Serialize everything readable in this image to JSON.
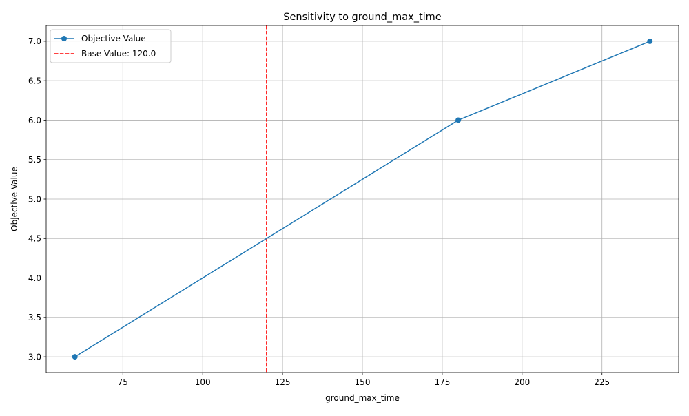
{
  "chart_data": {
    "type": "line",
    "title": "Sensitivity to ground_max_time",
    "xlabel": "ground_max_time",
    "ylabel": "Objective Value",
    "xlim": [
      51.0,
      249.0
    ],
    "ylim": [
      2.8,
      7.2
    ],
    "xticks": [
      75,
      100,
      125,
      150,
      175,
      200,
      225
    ],
    "yticks": [
      3.0,
      3.5,
      4.0,
      4.5,
      5.0,
      5.5,
      6.0,
      6.5,
      7.0
    ],
    "xtick_labels": [
      "75",
      "100",
      "125",
      "150",
      "175",
      "200",
      "225"
    ],
    "ytick_labels": [
      "3.0",
      "3.5",
      "4.0",
      "4.5",
      "5.0",
      "5.5",
      "6.0",
      "6.5",
      "7.0"
    ],
    "grid": true,
    "legend_position": "upper-left",
    "series": [
      {
        "name": "Objective Value",
        "color": "#1f77b4",
        "marker": "circle",
        "x": [
          60,
          180,
          240
        ],
        "y": [
          3.0,
          6.0,
          7.0
        ]
      }
    ],
    "reference_lines": [
      {
        "name": "Base Value: 120.0",
        "orientation": "vertical",
        "x": 120.0,
        "color": "#ff0000",
        "style": "dashed"
      }
    ]
  }
}
